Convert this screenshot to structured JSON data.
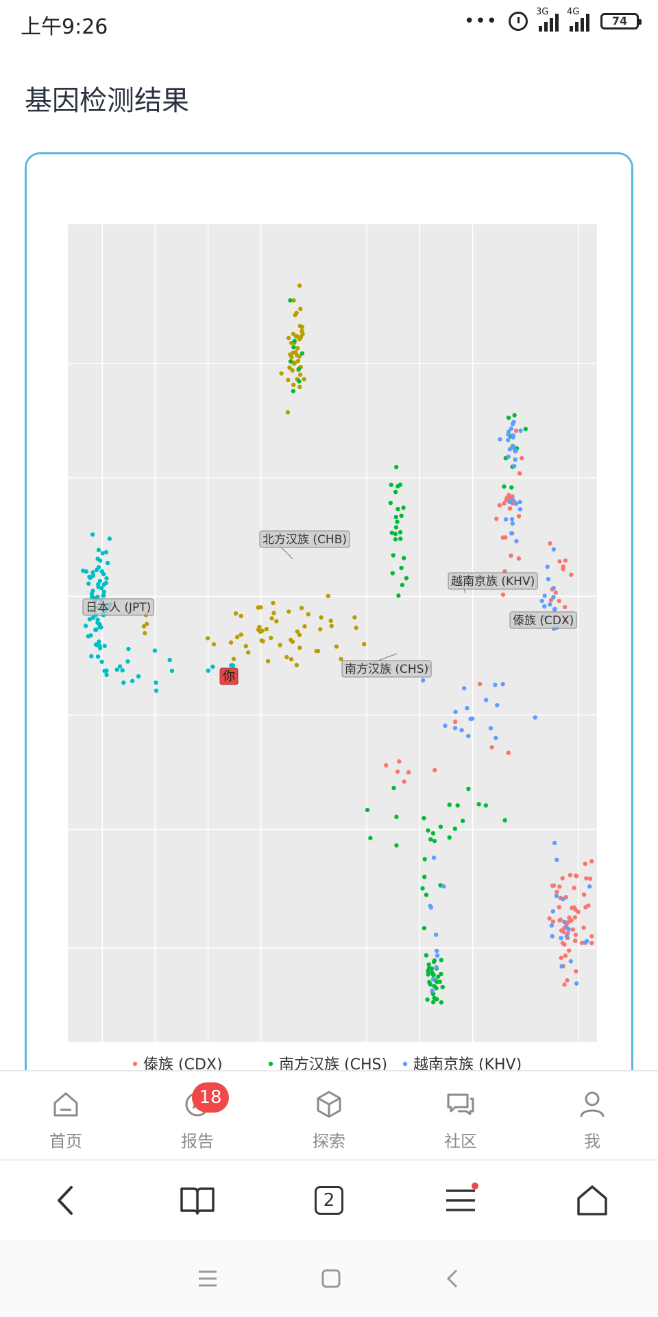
{
  "status_bar": {
    "time": "上午9:26",
    "signal1_label": "3G",
    "signal2_label": "4G",
    "battery": "74"
  },
  "page": {
    "title": "基因检测结果"
  },
  "chart_data": {
    "type": "scatter",
    "grid": true,
    "legend_position": "bottom",
    "series": [
      {
        "name": "傣族 (CDX)",
        "color": "#f8766d",
        "clusters": [
          {
            "cx": 0.84,
            "cy": 0.35,
            "sx": 0.012,
            "sy": 0.04,
            "n": 22
          },
          {
            "cx": 0.93,
            "cy": 0.44,
            "sx": 0.012,
            "sy": 0.035,
            "n": 12
          },
          {
            "cx": 0.95,
            "cy": 0.85,
            "sx": 0.022,
            "sy": 0.035,
            "n": 55
          },
          {
            "cx": 0.64,
            "cy": 0.66,
            "sx": 0.05,
            "sy": 0.01,
            "n": 6
          },
          {
            "cx": 0.78,
            "cy": 0.62,
            "sx": 0.05,
            "sy": 0.04,
            "n": 4
          }
        ]
      },
      {
        "name": "南方汉族 (CHS)",
        "color": "#00ba38",
        "clusters": [
          {
            "cx": 0.62,
            "cy": 0.37,
            "sx": 0.008,
            "sy": 0.04,
            "n": 24
          },
          {
            "cx": 0.68,
            "cy": 0.72,
            "sx": 0.08,
            "sy": 0.02,
            "n": 18
          },
          {
            "cx": 0.69,
            "cy": 0.92,
            "sx": 0.01,
            "sy": 0.02,
            "n": 30
          },
          {
            "cx": 0.69,
            "cy": 0.78,
            "sx": 0.01,
            "sy": 0.06,
            "n": 8
          },
          {
            "cx": 0.84,
            "cy": 0.27,
            "sx": 0.01,
            "sy": 0.04,
            "n": 10
          },
          {
            "cx": 0.43,
            "cy": 0.15,
            "sx": 0.008,
            "sy": 0.03,
            "n": 8
          }
        ]
      },
      {
        "name": "越南京族 (KHV)",
        "color": "#619cff",
        "clusters": [
          {
            "cx": 0.84,
            "cy": 0.31,
            "sx": 0.01,
            "sy": 0.04,
            "n": 28
          },
          {
            "cx": 0.91,
            "cy": 0.46,
            "sx": 0.01,
            "sy": 0.03,
            "n": 16
          },
          {
            "cx": 0.94,
            "cy": 0.85,
            "sx": 0.02,
            "sy": 0.04,
            "n": 18
          },
          {
            "cx": 0.75,
            "cy": 0.59,
            "sx": 0.06,
            "sy": 0.03,
            "n": 18
          },
          {
            "cx": 0.7,
            "cy": 0.86,
            "sx": 0.01,
            "sy": 0.05,
            "n": 10
          }
        ]
      },
      {
        "name": "北方汉族 (CHB)",
        "color": "#b79f00",
        "clusters": [
          {
            "cx": 0.43,
            "cy": 0.15,
            "sx": 0.01,
            "sy": 0.035,
            "n": 40
          },
          {
            "cx": 0.4,
            "cy": 0.5,
            "sx": 0.07,
            "sy": 0.018,
            "n": 50
          },
          {
            "cx": 0.15,
            "cy": 0.49,
            "sx": 0.005,
            "sy": 0.01,
            "n": 4
          }
        ]
      },
      {
        "name": "日本人 (JPT)",
        "color": "#00bfc4",
        "clusters": [
          {
            "cx": 0.06,
            "cy": 0.46,
            "sx": 0.012,
            "sy": 0.035,
            "n": 70
          },
          {
            "cx": 0.14,
            "cy": 0.54,
            "sx": 0.05,
            "sy": 0.015,
            "n": 15
          },
          {
            "cx": 0.27,
            "cy": 0.54,
            "sx": 0.02,
            "sy": 0.005,
            "n": 4
          }
        ]
      }
    ],
    "annotations": [
      {
        "text": "北方汉族 (CHB)",
        "style": "gray"
      },
      {
        "text": "越南京族 (KHV)",
        "style": "gray"
      },
      {
        "text": "日本人 (JPT)",
        "style": "gray"
      },
      {
        "text": "傣族 (CDX)",
        "style": "gray"
      },
      {
        "text": "南方汉族 (CHS)",
        "style": "gray"
      },
      {
        "text": "你",
        "style": "red"
      }
    ],
    "legend": [
      "傣族 (CDX)",
      "南方汉族 (CHS)",
      "越南京族 (KHV)"
    ]
  },
  "bottom_nav": {
    "items": [
      {
        "label": "首页",
        "icon": "home-icon"
      },
      {
        "label": "报告",
        "icon": "report-icon",
        "badge": "18"
      },
      {
        "label": "探索",
        "icon": "cube-icon"
      },
      {
        "label": "社区",
        "icon": "chat-icon"
      },
      {
        "label": "我",
        "icon": "user-icon"
      }
    ]
  },
  "browser_toolbar": {
    "tab_count": "2"
  }
}
